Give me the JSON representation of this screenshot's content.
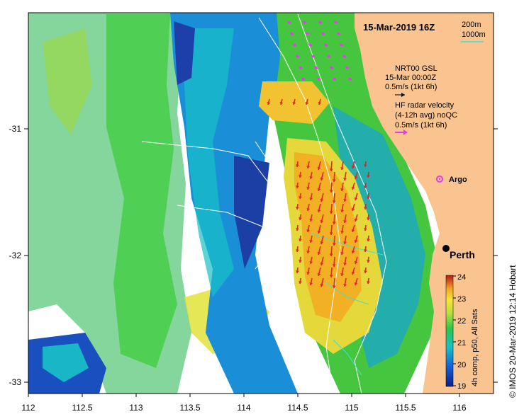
{
  "title": "15-Mar-2019 16Z",
  "scale_legend": {
    "line1": "200m",
    "line2": "1000m"
  },
  "legend": {
    "nrt_lines": [
      "NRT00 GSL",
      "15-Mar 00:00Z",
      "0.5m/s (1kt 6h)"
    ],
    "hf_lines": [
      "HF radar velocity",
      "(4-12h avg) noQC",
      "0.5m/s (1kt 6h)"
    ]
  },
  "argo_label": "Argo",
  "city_label": "Perth",
  "colorbar": {
    "title": "4h comp, p50, All Sats",
    "ticks": [
      "24",
      "23",
      "22",
      "21",
      "20",
      "19"
    ],
    "min": 19,
    "max": 24
  },
  "x_axis": {
    "ticks": [
      "112",
      "112.5",
      "113",
      "113.5",
      "114",
      "114.5",
      "115",
      "115.5",
      "116"
    ]
  },
  "y_axis": {
    "ticks": [
      "-31",
      "-32",
      "-33"
    ]
  },
  "credit": "© IMOS 20-Mar-2019 12:14 Hobart",
  "colors": {
    "land": "#f9c48f",
    "warm": "#f2b124",
    "cool": "#0a3fa0",
    "hf_arrow": "#e8202a",
    "nrt_arrow": "#e23ee6",
    "bathy_200m": "#ffffff",
    "bathy_1000m": "#40e0d0"
  }
}
